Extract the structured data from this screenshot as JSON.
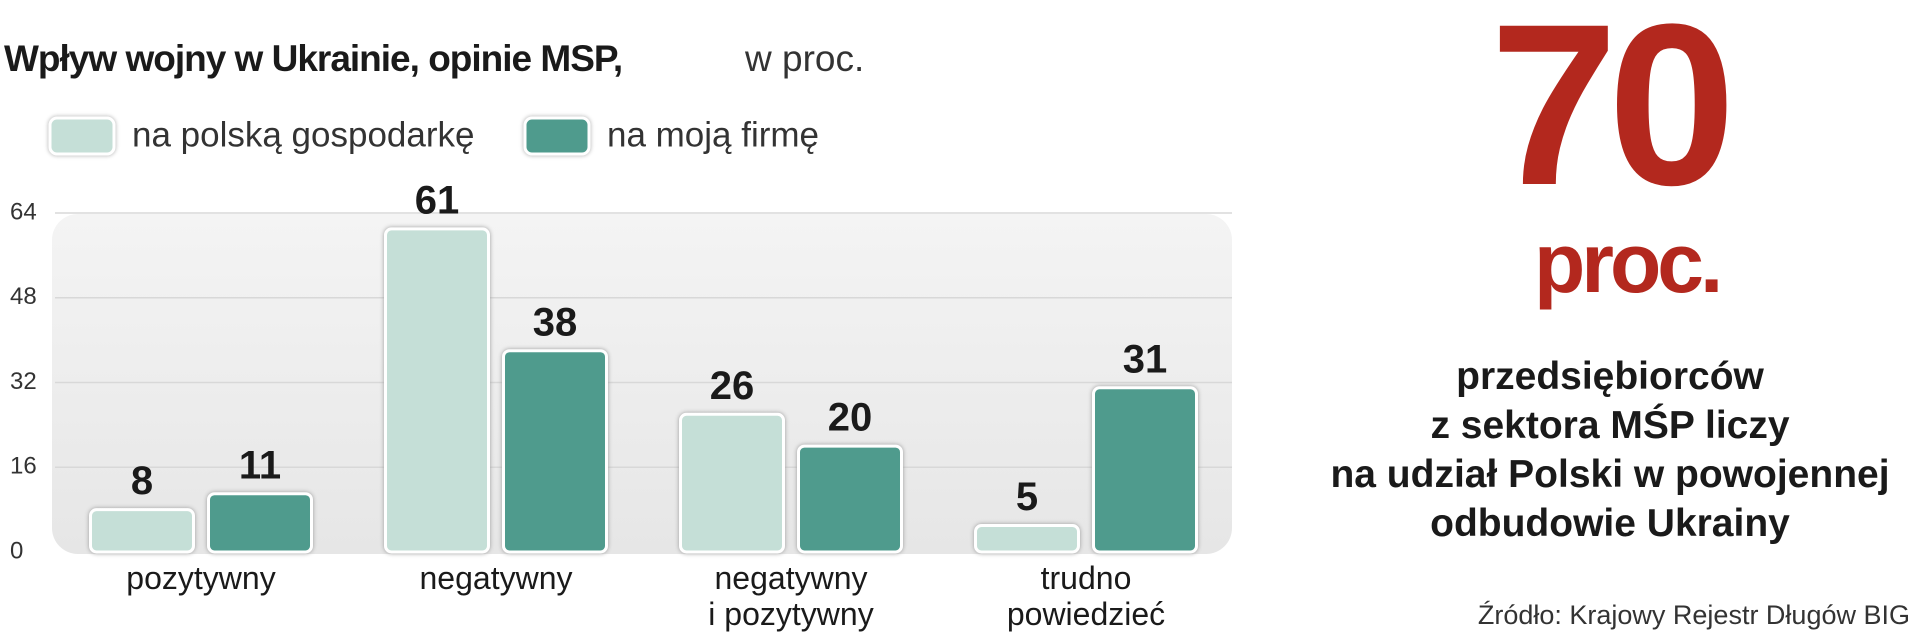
{
  "chart_data": {
    "type": "bar",
    "title": "Wpływ wojny w Ukrainie, opinie MSP,",
    "subtitle": "w proc.",
    "categories": [
      "pozytywny",
      "negatywny",
      "negatywny\ni pozytywny",
      "trudno\npowiedzieć"
    ],
    "series": [
      {
        "name": "na polską gospodarkę",
        "color": "#c5dfd7",
        "values": [
          8,
          61,
          26,
          5
        ]
      },
      {
        "name": "na moją firmę",
        "color": "#4f9b8d",
        "values": [
          11,
          38,
          20,
          31
        ]
      }
    ],
    "ylim": [
      0,
      64
    ],
    "yticks": [
      0,
      16,
      32,
      48,
      64
    ],
    "grid": true
  },
  "highlight": {
    "value": 70,
    "unit": "proc.",
    "color": "#b3281e",
    "text": [
      "przedsiębiorców",
      "z sektora MŚP liczy",
      "na udział Polski w powojennej",
      "odbudowie Ukrainy"
    ]
  },
  "source": "Źródło: Krajowy Rejestr Długów BIG"
}
